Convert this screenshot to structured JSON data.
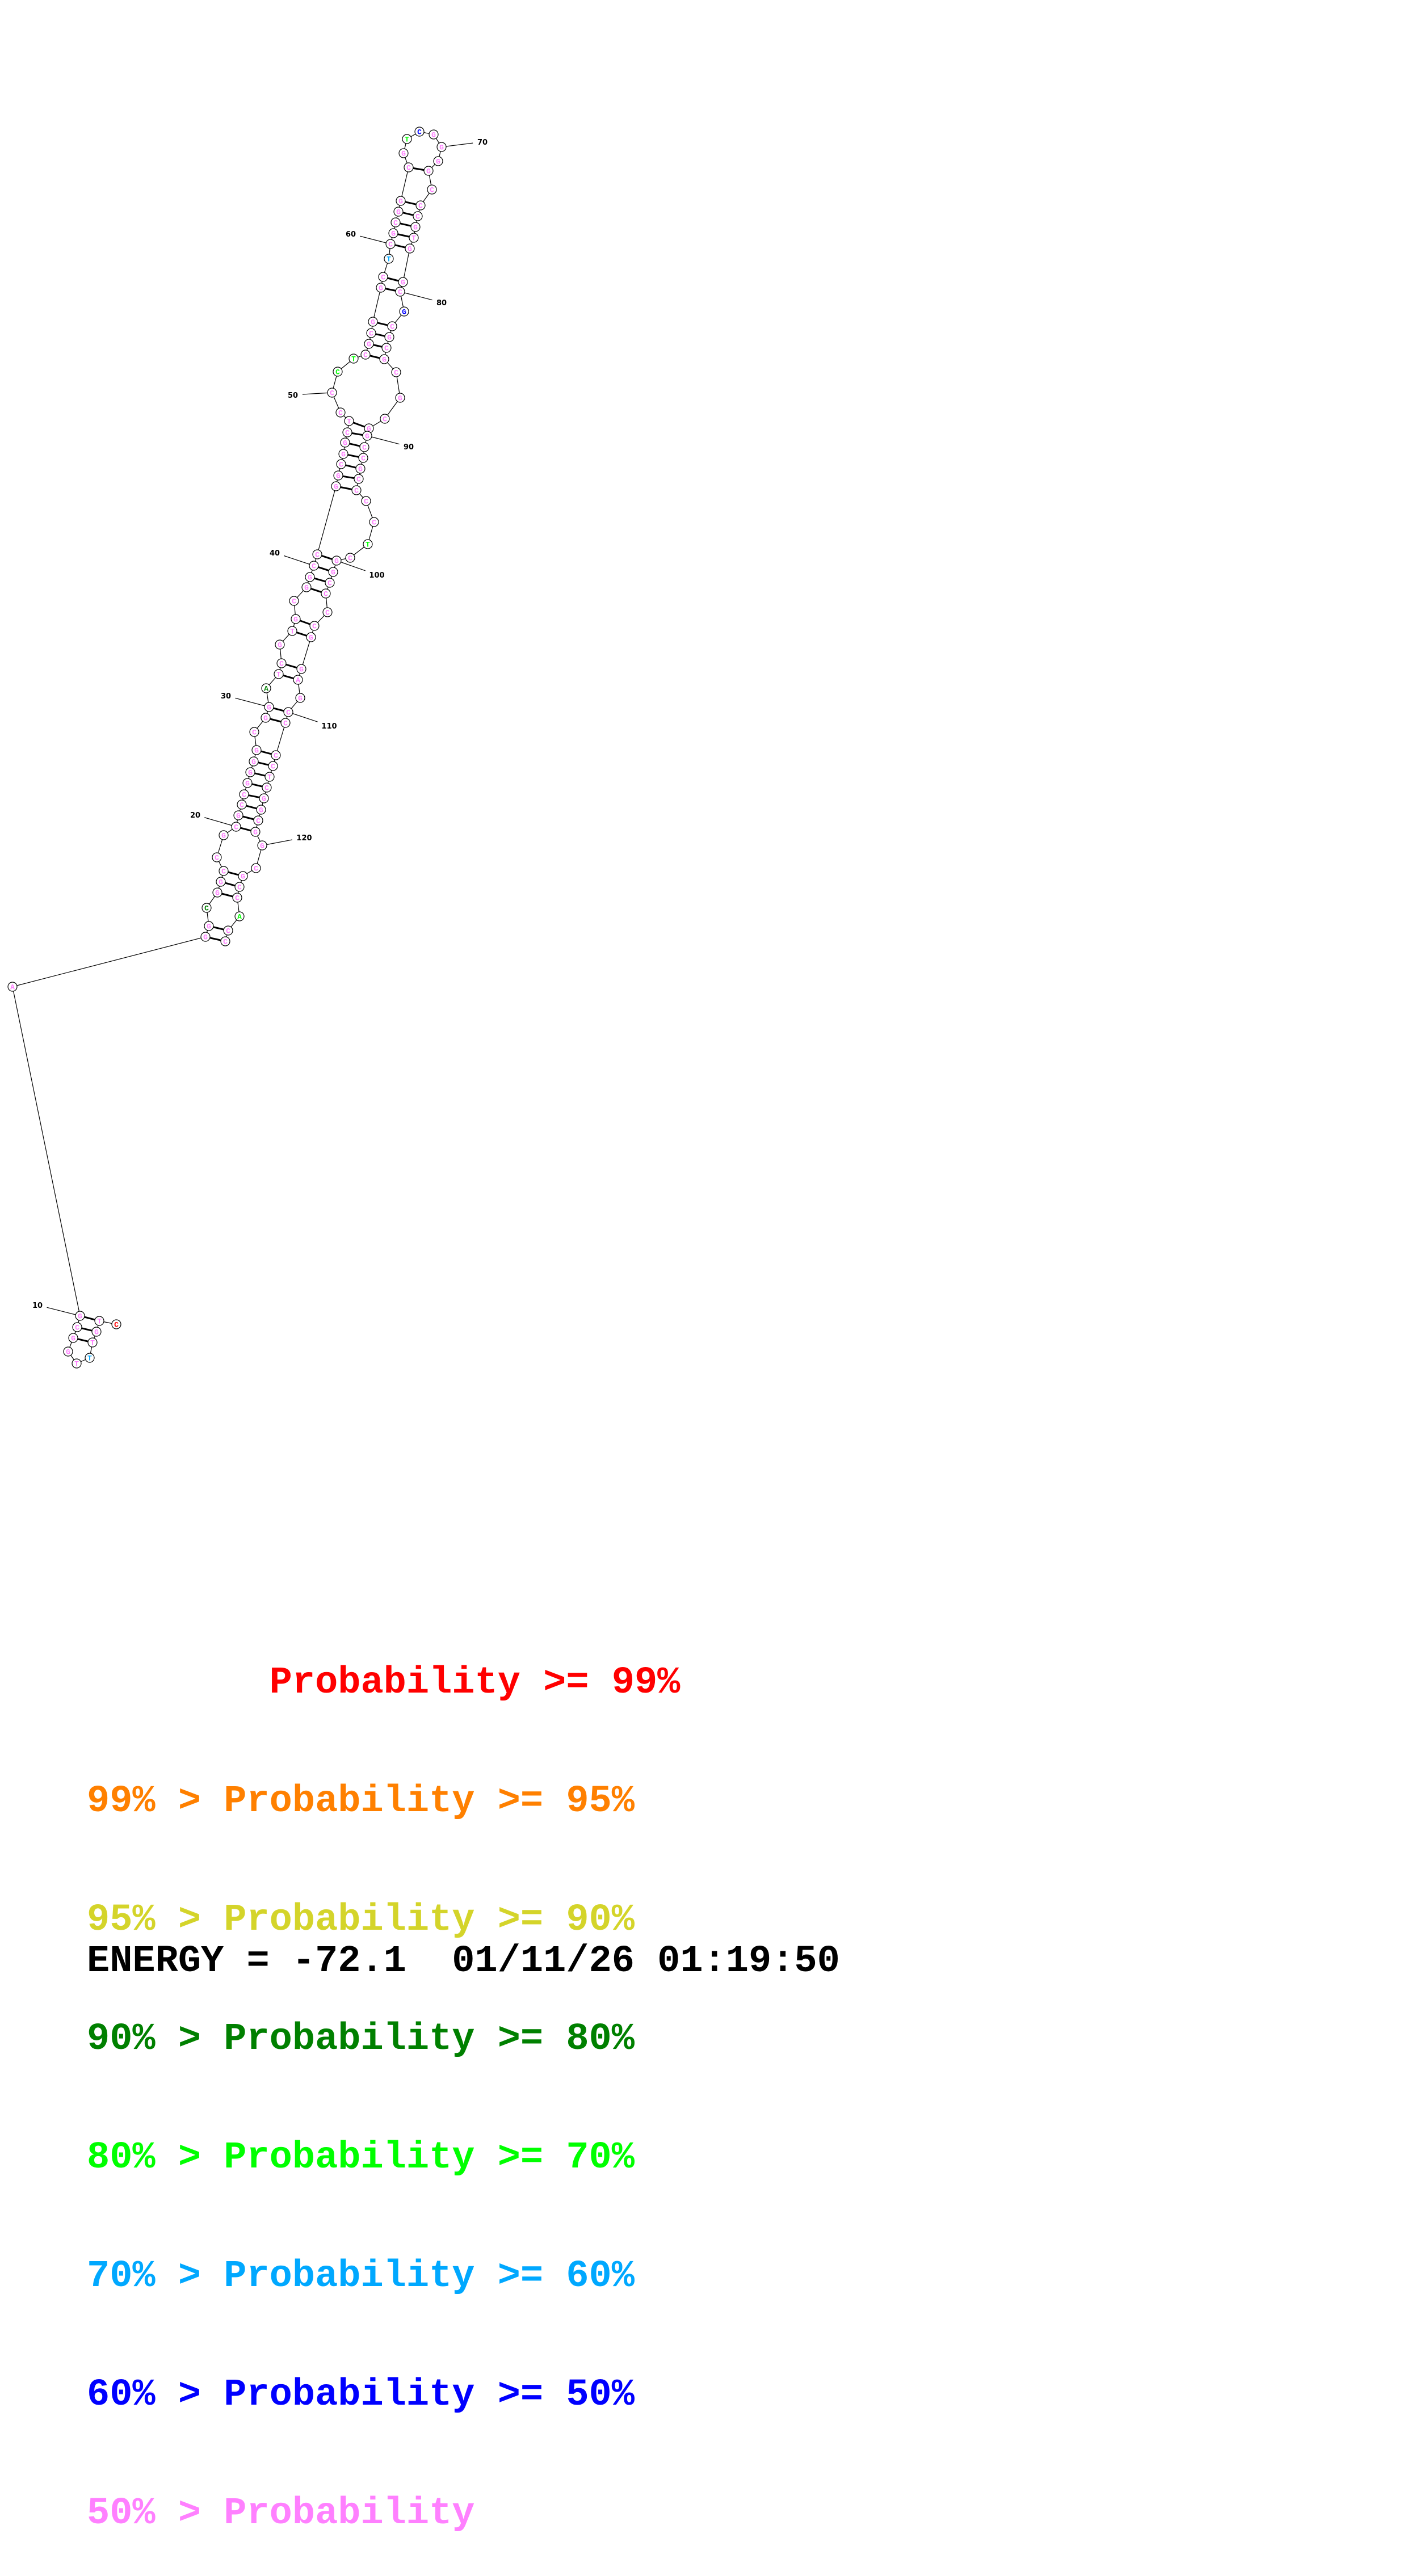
{
  "structure": {
    "sequence": "CTGTTTGGCGAGGCGGCCGCGCCGGGGCGGATCGTGCGGCCGGCGGCTCCCTCGCGGCTCGCGGCGTCGGGGCCCGTGGCGCGCGCGCGGCCGCCCCTCGGCCCCGGAGCCCCTCGGCGGCGCCACC",
    "pairs": [
      [
        2,
        10
      ],
      [
        3,
        9
      ],
      [
        4,
        8
      ],
      [
        12,
        127
      ],
      [
        13,
        126
      ],
      [
        15,
        124
      ],
      [
        16,
        123
      ],
      [
        17,
        122
      ],
      [
        20,
        119
      ],
      [
        21,
        118
      ],
      [
        22,
        117
      ],
      [
        23,
        116
      ],
      [
        24,
        115
      ],
      [
        25,
        114
      ],
      [
        26,
        113
      ],
      [
        27,
        112
      ],
      [
        29,
        111
      ],
      [
        30,
        110
      ],
      [
        32,
        108
      ],
      [
        33,
        107
      ],
      [
        35,
        106
      ],
      [
        36,
        105
      ],
      [
        38,
        103
      ],
      [
        39,
        102
      ],
      [
        40,
        101
      ],
      [
        41,
        100
      ],
      [
        42,
        95
      ],
      [
        43,
        94
      ],
      [
        44,
        93
      ],
      [
        45,
        92
      ],
      [
        46,
        91
      ],
      [
        47,
        90
      ],
      [
        48,
        89
      ],
      [
        53,
        85
      ],
      [
        54,
        84
      ],
      [
        55,
        83
      ],
      [
        56,
        82
      ],
      [
        57,
        80
      ],
      [
        58,
        79
      ],
      [
        60,
        78
      ],
      [
        61,
        77
      ],
      [
        62,
        76
      ],
      [
        63,
        75
      ],
      [
        64,
        74
      ],
      [
        65,
        72
      ]
    ],
    "probability_class": {
      "1": "p99",
      "5": "p60",
      "14": "p80",
      "31": "p80",
      "51": "p70",
      "52": "p70",
      "59": "p60",
      "67": "p70",
      "68": "p50",
      "81": "p50",
      "98": "p70",
      "125": "p70"
    },
    "default_class": "p0",
    "position_labels": [
      "10",
      "20",
      "30",
      "40",
      "50",
      "60",
      "70",
      "80",
      "90",
      "100",
      "110",
      "120"
    ]
  },
  "colors": {
    "p99": "#ff0000",
    "p95": "#ff8000",
    "p90": "#d4d42a",
    "p80": "#008000",
    "p70": "#00ff00",
    "p60": "#00a8ff",
    "p50": "#0000ff",
    "p0": "#ff80ff"
  },
  "legend": [
    {
      "text": "        Probability >= 99%",
      "cls": "p99"
    },
    {
      "text": "99% > Probability >= 95%",
      "cls": "p95"
    },
    {
      "text": "95% > Probability >= 90%",
      "cls": "p90"
    },
    {
      "text": "90% > Probability >= 80%",
      "cls": "p80"
    },
    {
      "text": "80% > Probability >= 70%",
      "cls": "p70"
    },
    {
      "text": "70% > Probability >= 60%",
      "cls": "p60"
    },
    {
      "text": "60% > Probability >= 50%",
      "cls": "p50"
    },
    {
      "text": "50% > Probability",
      "cls": "p0"
    }
  ],
  "footer": {
    "energy": "ENERGY = -72.1  01/11/26 01:19:50"
  }
}
